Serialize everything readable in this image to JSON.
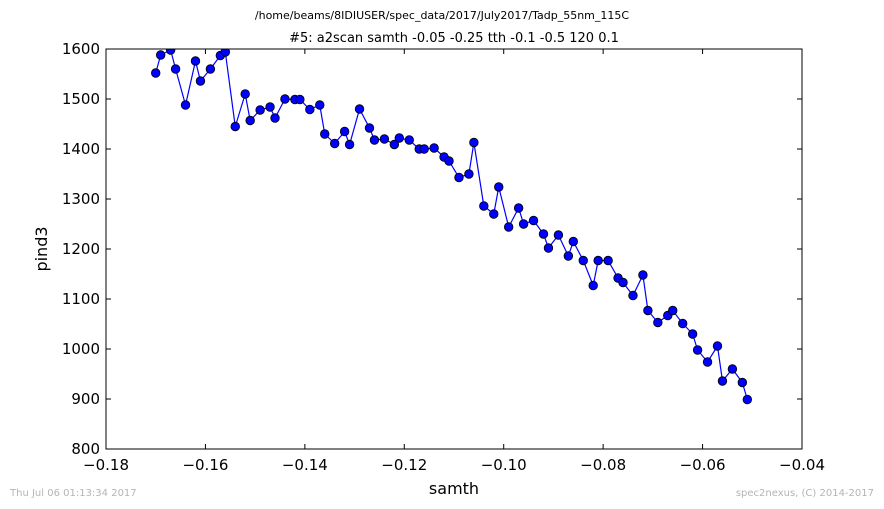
{
  "supertitle": "/home/beams/8IDIUSER/spec_data/2017/July2017/Tadp_55nm_115C",
  "footer": {
    "timestamp": "Thu Jul 06 01:13:34 2017",
    "credit": "spec2nexus, (C) 2014-2017"
  },
  "colors": {
    "series": "#0000ff",
    "marker_fill": "#0000ff",
    "axes": "#000000",
    "footer": "#b4b4b4"
  },
  "chart_data": {
    "type": "line",
    "title": "#5: a2scan  samth -0.05 -0.25  tth -0.1 -0.5  120 0.1",
    "xlabel": "samth",
    "ylabel": "pind3",
    "xlim": [
      -0.18,
      -0.04
    ],
    "ylim": [
      800,
      1600
    ],
    "xticks": [
      "−0.18",
      "−0.16",
      "−0.14",
      "−0.12",
      "−0.10",
      "−0.08",
      "−0.06",
      "−0.04"
    ],
    "yticks": [
      "800",
      "900",
      "1000",
      "1100",
      "1200",
      "1300",
      "1400",
      "1500",
      "1600"
    ],
    "grid": false,
    "marker": "circle",
    "series": [
      {
        "x": [
          -0.17,
          -0.169,
          -0.167,
          -0.166,
          -0.164,
          -0.162,
          -0.161,
          -0.159,
          -0.157,
          -0.156,
          -0.154,
          -0.152,
          -0.151,
          -0.149,
          -0.147,
          -0.146,
          -0.144,
          -0.142,
          -0.141,
          -0.139,
          -0.137,
          -0.136,
          -0.134,
          -0.132,
          -0.131,
          -0.129,
          -0.127,
          -0.126,
          -0.124,
          -0.122,
          -0.121,
          -0.119,
          -0.117,
          -0.116,
          -0.114,
          -0.112,
          -0.111,
          -0.109,
          -0.107,
          -0.106,
          -0.104,
          -0.102,
          -0.101,
          -0.099,
          -0.097,
          -0.096,
          -0.094,
          -0.092,
          -0.091,
          -0.089,
          -0.087,
          -0.086,
          -0.084,
          -0.082,
          -0.081,
          -0.079,
          -0.077,
          -0.076,
          -0.074,
          -0.072,
          -0.071,
          -0.069,
          -0.067,
          -0.066,
          -0.064,
          -0.062,
          -0.061,
          -0.059,
          -0.057,
          -0.056,
          -0.054,
          -0.052,
          -0.051
        ],
        "values": [
          1552,
          1588,
          1598,
          1560,
          1488,
          1576,
          1536,
          1560,
          1587,
          1594,
          1445,
          1510,
          1457,
          1478,
          1484,
          1462,
          1500,
          1499,
          1499,
          1479,
          1488,
          1430,
          1411,
          1435,
          1409,
          1480,
          1442,
          1418,
          1420,
          1409,
          1422,
          1418,
          1400,
          1400,
          1402,
          1384,
          1376,
          1343,
          1350,
          1413,
          1286,
          1270,
          1324,
          1244,
          1282,
          1250,
          1257,
          1230,
          1202,
          1228,
          1186,
          1215,
          1177,
          1127,
          1177,
          1177,
          1142,
          1133,
          1107,
          1148,
          1077,
          1053,
          1067,
          1077,
          1051,
          1030,
          998,
          974,
          1006,
          936,
          960,
          933,
          899
        ]
      }
    ]
  }
}
